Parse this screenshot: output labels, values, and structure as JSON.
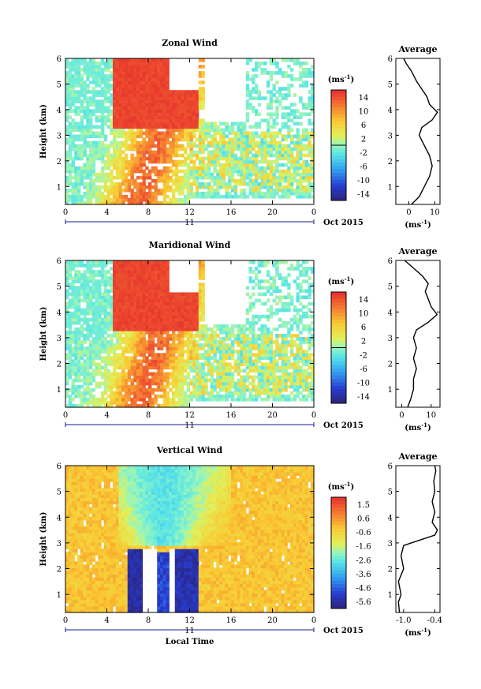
{
  "chart_data": [
    {
      "type": "heatmap",
      "title": "Zonal Wind",
      "xlabel": "",
      "ylabel": "Height (km)",
      "x_range": [
        0,
        24
      ],
      "y_range": [
        0.3,
        6
      ],
      "x_ticks": [
        "0",
        "4",
        "8",
        "12",
        "16",
        "20",
        "0"
      ],
      "y_ticks": [
        "1",
        "2",
        "3",
        "4",
        "5",
        "6"
      ],
      "date_day": "11",
      "date_month": "Oct 2015",
      "colorbar": {
        "unit": "(ms",
        "unit_exp": "-1",
        "unit_close": ")",
        "ticks": [
          "14",
          "10",
          "6",
          "2",
          "-2",
          "-6",
          "-10",
          "-14"
        ],
        "range": [
          -16,
          16
        ]
      },
      "average_profile": {
        "title": "Average",
        "xlabel": "(ms",
        "xlabel_exp": "-1",
        "xlabel_close": ")",
        "x_ticks": [
          "0",
          "10"
        ],
        "x_range": [
          -5,
          12
        ],
        "y_ticks": [
          "1",
          "2",
          "3",
          "4",
          "5",
          "6"
        ],
        "heights": [
          0.3,
          0.6,
          1.0,
          1.4,
          1.8,
          2.2,
          2.6,
          3.0,
          3.3,
          3.6,
          3.9,
          4.2,
          4.5,
          4.8,
          5.1,
          5.5,
          5.8,
          6.0
        ],
        "values": [
          1,
          4,
          6,
          8,
          9,
          8,
          6,
          4,
          5,
          9,
          11,
          8,
          7,
          5,
          3,
          1,
          -1,
          -2
        ]
      }
    },
    {
      "type": "heatmap",
      "title": "Maridional Wind",
      "xlabel": "",
      "ylabel": "Height (km)",
      "x_range": [
        0,
        24
      ],
      "y_range": [
        0.3,
        6
      ],
      "x_ticks": [
        "0",
        "4",
        "8",
        "12",
        "16",
        "20",
        "0"
      ],
      "y_ticks": [
        "1",
        "2",
        "3",
        "4",
        "5",
        "6"
      ],
      "date_day": "11",
      "date_month": "Oct 2015",
      "colorbar": {
        "unit": "(ms",
        "unit_exp": "-1",
        "unit_close": ")",
        "ticks": [
          "14",
          "10",
          "6",
          "2",
          "-2",
          "-6",
          "-10",
          "-14"
        ],
        "range": [
          -16,
          16
        ]
      },
      "average_profile": {
        "title": "Average",
        "xlabel": "(ms",
        "xlabel_exp": "-1",
        "xlabel_close": ")",
        "x_ticks": [
          "0",
          "10"
        ],
        "x_range": [
          -2,
          13
        ],
        "y_ticks": [
          "1",
          "2",
          "3",
          "4",
          "5",
          "6"
        ],
        "heights": [
          0.3,
          0.6,
          1.0,
          1.4,
          1.8,
          2.2,
          2.6,
          3.0,
          3.3,
          3.6,
          3.9,
          4.2,
          4.5,
          4.8,
          5.1,
          5.4,
          5.8,
          6.0
        ],
        "values": [
          2,
          3,
          4,
          4,
          5,
          4,
          5,
          4,
          5,
          9,
          12,
          10,
          9,
          8,
          9,
          7,
          3,
          1
        ]
      }
    },
    {
      "type": "heatmap",
      "title": "Vertical Wind",
      "xlabel": "Local Time",
      "ylabel": "Height (km)",
      "x_range": [
        0,
        24
      ],
      "y_range": [
        0.3,
        6
      ],
      "x_ticks": [
        "0",
        "4",
        "8",
        "12",
        "16",
        "20",
        "0"
      ],
      "y_ticks": [
        "1",
        "2",
        "3",
        "4",
        "5",
        "6"
      ],
      "date_day": "11",
      "date_month": "Oct 2015",
      "colorbar": {
        "unit": "(ms",
        "unit_exp": "-1",
        "unit_close": ")",
        "ticks": [
          "1.5",
          "0.6",
          "-0.6",
          "-1.6",
          "-2.6",
          "-3.6",
          "-4.6",
          "-5.6"
        ],
        "range": [
          -6,
          2
        ]
      },
      "average_profile": {
        "title": "Average",
        "xlabel": "(ms",
        "xlabel_exp": "-1",
        "xlabel_close": ")",
        "x_ticks": [
          "-1.0",
          "-0.4"
        ],
        "x_range": [
          -1.15,
          -0.3
        ],
        "y_ticks": [
          "1",
          "2",
          "3",
          "4",
          "5",
          "6"
        ],
        "heights": [
          0.3,
          0.7,
          1.0,
          1.5,
          2.0,
          2.5,
          2.9,
          3.1,
          3.3,
          3.5,
          3.8,
          4.2,
          4.6,
          5.0,
          5.4,
          5.8,
          6.0
        ],
        "values": [
          -1.08,
          -1.1,
          -1.05,
          -1.1,
          -1.0,
          -1.05,
          -1.0,
          -0.7,
          -0.4,
          -0.35,
          -0.45,
          -0.4,
          -0.45,
          -0.4,
          -0.42,
          -0.38,
          -0.4
        ]
      }
    }
  ]
}
